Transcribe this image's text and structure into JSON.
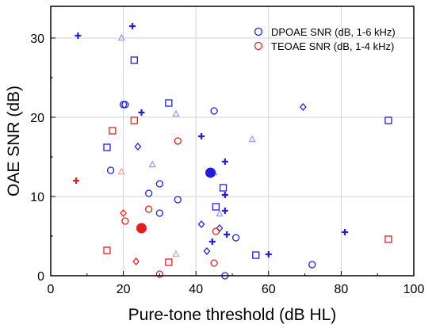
{
  "chart_data": {
    "type": "scatter",
    "title": "",
    "xlabel": "Pure-tone threshold (dB HL)",
    "ylabel": "OAE SNR (dB)",
    "xlim": [
      0,
      100
    ],
    "ylim": [
      0,
      34
    ],
    "xticks": [
      0,
      20,
      40,
      60,
      80,
      100
    ],
    "yticks": [
      0,
      10,
      20,
      30
    ],
    "grid": true,
    "legend_position": "top-right",
    "legend": [
      {
        "label": "DPOAE SNR (dB, 1-6 kHz)",
        "color": "#1f1fd6"
      },
      {
        "label": "TEOAE SNR (dB, 1-4 kHz)",
        "color": "#e02020"
      }
    ],
    "series": [
      {
        "name": "DPOAE SNR (dB, 1-6 kHz)",
        "color": "#1f1fd6",
        "points": [
          {
            "x": 7.5,
            "y": 30.3,
            "marker": "plus"
          },
          {
            "x": 22.5,
            "y": 31.5,
            "marker": "plus"
          },
          {
            "x": 25,
            "y": 20.6,
            "marker": "plus"
          },
          {
            "x": 41.5,
            "y": 17.6,
            "marker": "plus"
          },
          {
            "x": 48,
            "y": 14.4,
            "marker": "plus"
          },
          {
            "x": 48,
            "y": 10.2,
            "marker": "plus"
          },
          {
            "x": 48,
            "y": 8.2,
            "marker": "plus"
          },
          {
            "x": 48.5,
            "y": 5.2,
            "marker": "plus"
          },
          {
            "x": 44.5,
            "y": 4.3,
            "marker": "plus"
          },
          {
            "x": 60,
            "y": 2.7,
            "marker": "plus"
          },
          {
            "x": 81,
            "y": 5.5,
            "marker": "plus"
          },
          {
            "x": 19.5,
            "y": 30.0,
            "marker": "triangle",
            "faded": true
          },
          {
            "x": 34.5,
            "y": 20.4,
            "marker": "triangle",
            "faded": true
          },
          {
            "x": 28,
            "y": 14.0,
            "marker": "triangle",
            "faded": true
          },
          {
            "x": 55.5,
            "y": 17.2,
            "marker": "triangle",
            "faded": true
          },
          {
            "x": 45,
            "y": 13.0,
            "marker": "triangle",
            "faded": true
          },
          {
            "x": 46.5,
            "y": 7.8,
            "marker": "triangle",
            "faded": true
          },
          {
            "x": 23,
            "y": 27.2,
            "marker": "square"
          },
          {
            "x": 32.5,
            "y": 21.8,
            "marker": "square"
          },
          {
            "x": 15.5,
            "y": 16.2,
            "marker": "square"
          },
          {
            "x": 47.5,
            "y": 11.1,
            "marker": "square"
          },
          {
            "x": 45.5,
            "y": 8.7,
            "marker": "square"
          },
          {
            "x": 56.5,
            "y": 2.6,
            "marker": "square"
          },
          {
            "x": 93,
            "y": 19.6,
            "marker": "square"
          },
          {
            "x": 20,
            "y": 21.6,
            "marker": "circle"
          },
          {
            "x": 20.5,
            "y": 21.6,
            "marker": "circle"
          },
          {
            "x": 45,
            "y": 20.8,
            "marker": "circle"
          },
          {
            "x": 16.5,
            "y": 13.3,
            "marker": "circle"
          },
          {
            "x": 27,
            "y": 10.4,
            "marker": "circle"
          },
          {
            "x": 30,
            "y": 11.6,
            "marker": "circle"
          },
          {
            "x": 30,
            "y": 7.9,
            "marker": "circle"
          },
          {
            "x": 35,
            "y": 9.6,
            "marker": "circle"
          },
          {
            "x": 51,
            "y": 4.8,
            "marker": "circle"
          },
          {
            "x": 72,
            "y": 1.4,
            "marker": "circle"
          },
          {
            "x": 48,
            "y": 0.0,
            "marker": "circle"
          },
          {
            "x": 24,
            "y": 16.3,
            "marker": "diamond"
          },
          {
            "x": 69.5,
            "y": 21.3,
            "marker": "diamond"
          },
          {
            "x": 41.5,
            "y": 6.5,
            "marker": "diamond"
          },
          {
            "x": 46.5,
            "y": 6.0,
            "marker": "diamond"
          },
          {
            "x": 43,
            "y": 3.1,
            "marker": "diamond"
          },
          {
            "x": 44,
            "y": 13.0,
            "marker": "filled-circle",
            "size": "large"
          }
        ]
      },
      {
        "name": "TEOAE SNR (dB, 1-4 kHz)",
        "color": "#e02020",
        "points": [
          {
            "x": 7,
            "y": 12.0,
            "marker": "plus"
          },
          {
            "x": 19.5,
            "y": 13.1,
            "marker": "triangle",
            "faded": true
          },
          {
            "x": 34.5,
            "y": 2.7,
            "marker": "triangle",
            "faded": true
          },
          {
            "x": 17,
            "y": 18.3,
            "marker": "square"
          },
          {
            "x": 23,
            "y": 19.6,
            "marker": "square"
          },
          {
            "x": 15.5,
            "y": 3.2,
            "marker": "square"
          },
          {
            "x": 32.5,
            "y": 1.7,
            "marker": "square"
          },
          {
            "x": 93,
            "y": 4.6,
            "marker": "square"
          },
          {
            "x": 35,
            "y": 17.0,
            "marker": "circle"
          },
          {
            "x": 27,
            "y": 8.4,
            "marker": "circle"
          },
          {
            "x": 20.5,
            "y": 6.9,
            "marker": "circle"
          },
          {
            "x": 30,
            "y": 0.2,
            "marker": "circle"
          },
          {
            "x": 45.5,
            "y": 5.6,
            "marker": "circle"
          },
          {
            "x": 45,
            "y": 1.6,
            "marker": "circle"
          },
          {
            "x": 20,
            "y": 7.9,
            "marker": "diamond"
          },
          {
            "x": 23.5,
            "y": 1.8,
            "marker": "diamond"
          },
          {
            "x": 25,
            "y": 6.0,
            "marker": "filled-circle",
            "size": "large"
          }
        ]
      }
    ]
  }
}
